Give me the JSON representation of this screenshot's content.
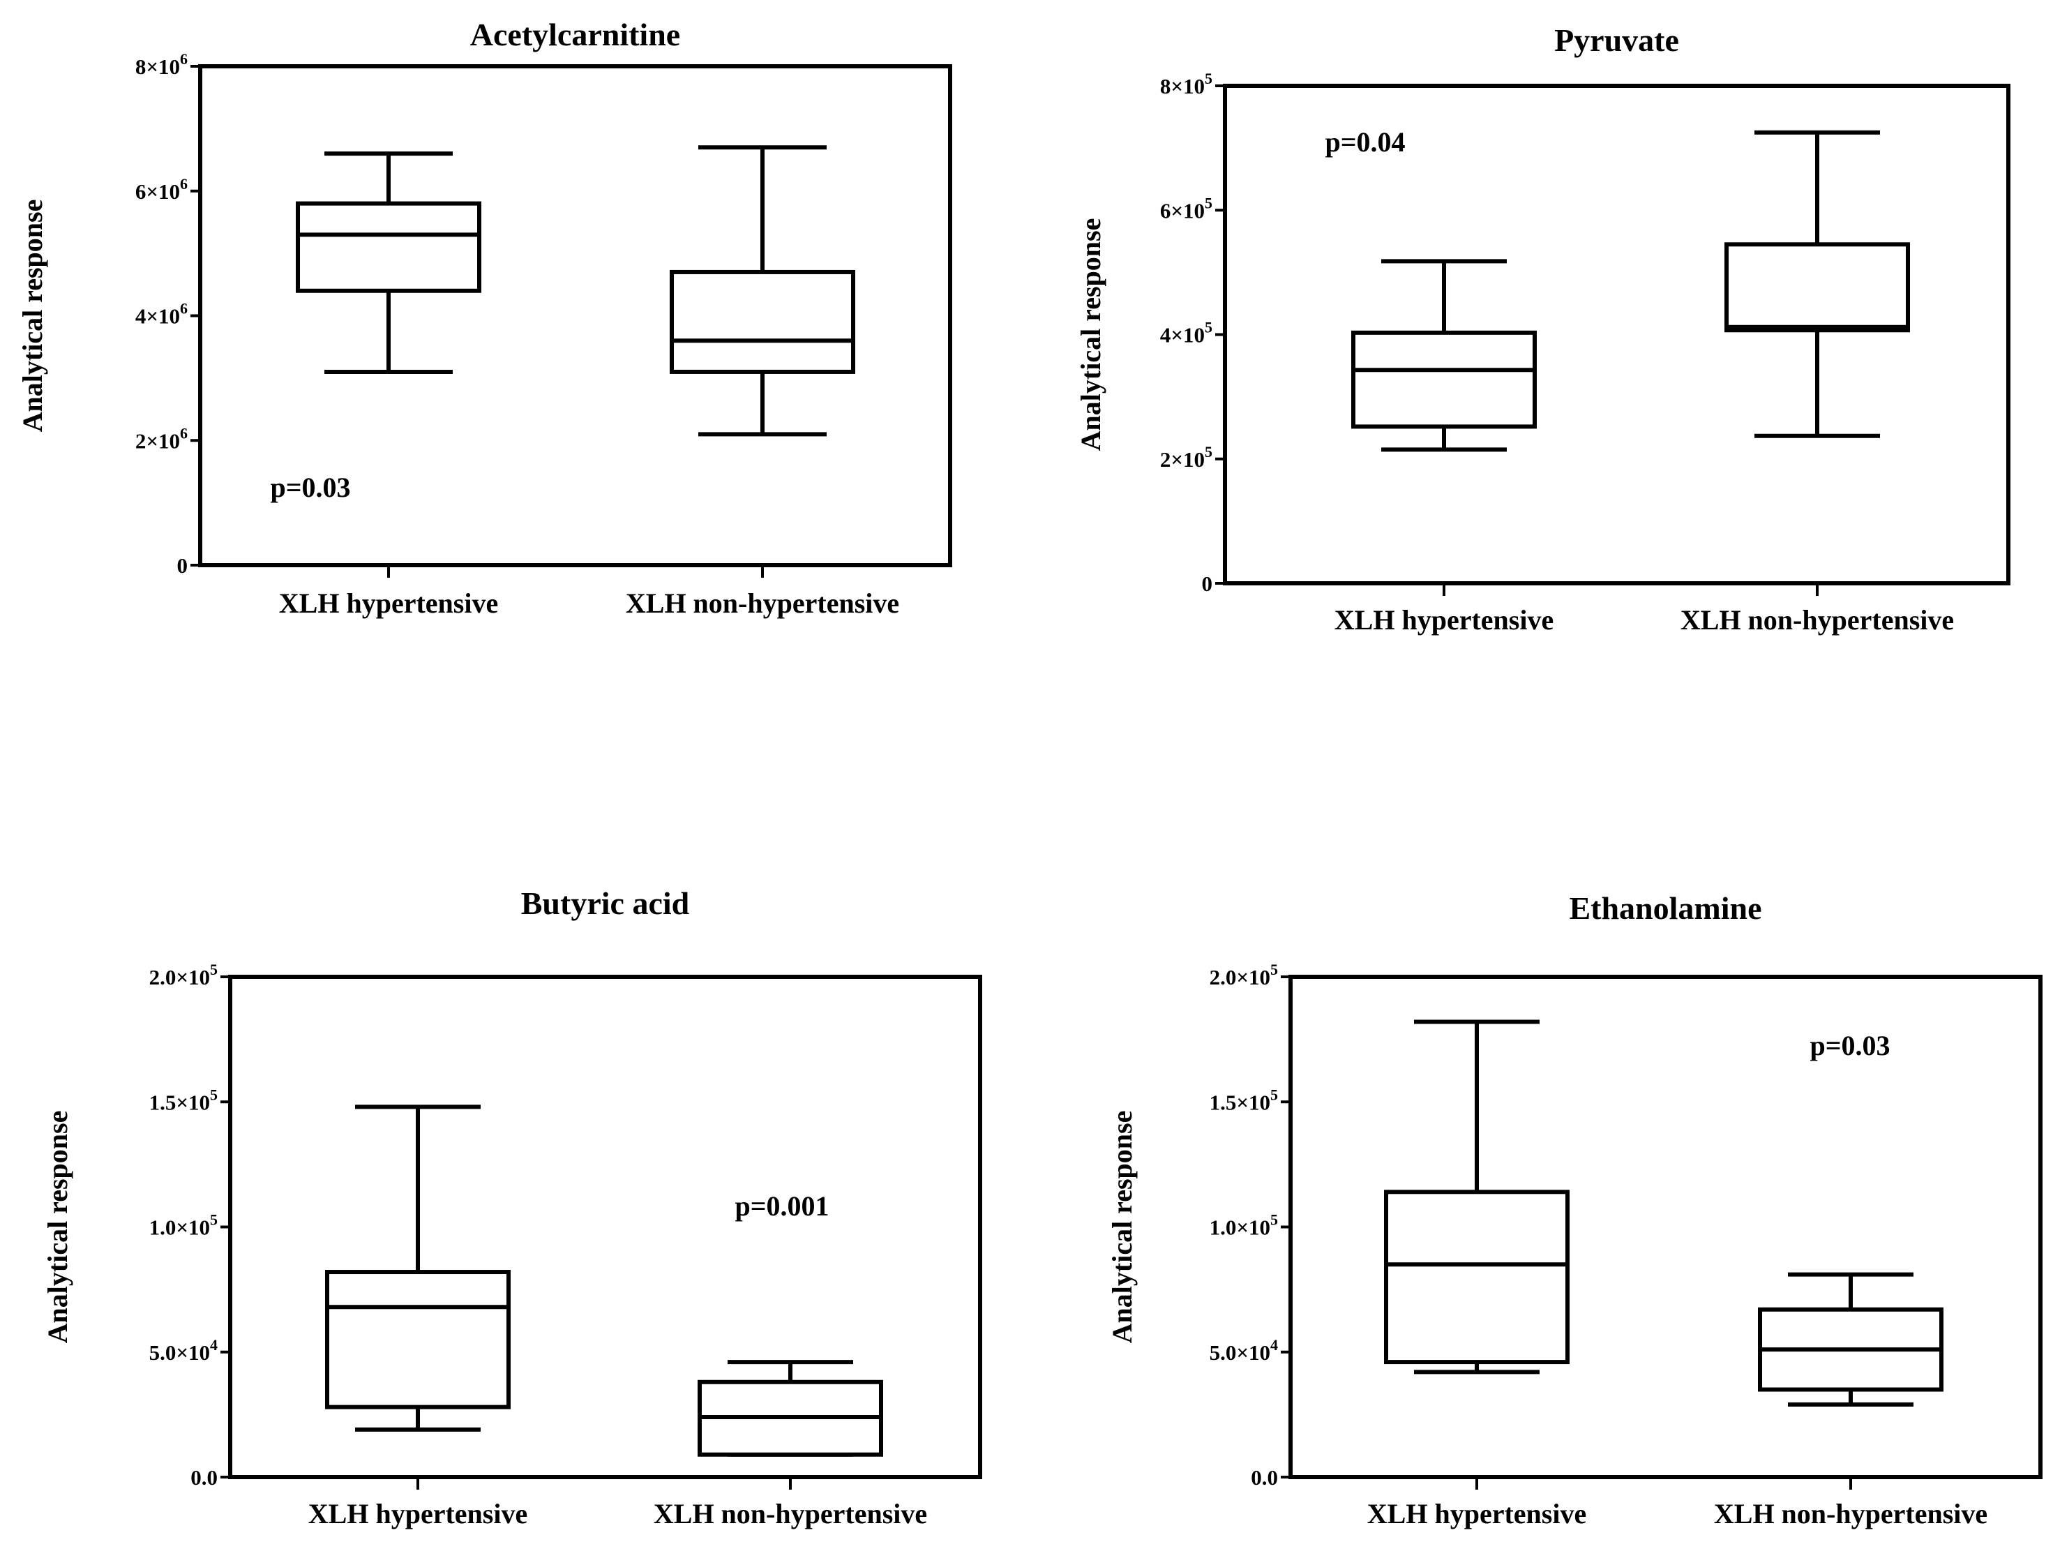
{
  "chart_data": [
    {
      "type": "box",
      "title": "Acetylcarnitine",
      "ylabel": "Analytical response",
      "ylim": [
        0,
        8000000
      ],
      "yticks": [
        {
          "value": 0,
          "mant": "0",
          "exp": ""
        },
        {
          "value": 2000000,
          "mant": "2×10",
          "exp": "6"
        },
        {
          "value": 4000000,
          "mant": "4×10",
          "exp": "6"
        },
        {
          "value": 6000000,
          "mant": "6×10",
          "exp": "6"
        },
        {
          "value": 8000000,
          "mant": "8×10",
          "exp": "6"
        }
      ],
      "categories": [
        "XLH hypertensive",
        "XLH non-hypertensive"
      ],
      "boxes": [
        {
          "min": 3100000,
          "q1": 4400000,
          "median": 5300000,
          "q3": 5800000,
          "max": 6600000
        },
        {
          "min": 2100000,
          "q1": 3100000,
          "median": 3600000,
          "q3": 4700000,
          "max": 6700000
        }
      ],
      "annotation": "p=0.03"
    },
    {
      "type": "box",
      "title": "Pyruvate",
      "ylabel": "Analytical response",
      "ylim": [
        0,
        800000
      ],
      "yticks": [
        {
          "value": 0,
          "mant": "0",
          "exp": ""
        },
        {
          "value": 200000,
          "mant": "2×10",
          "exp": "5"
        },
        {
          "value": 400000,
          "mant": "4×10",
          "exp": "5"
        },
        {
          "value": 600000,
          "mant": "6×10",
          "exp": "5"
        },
        {
          "value": 800000,
          "mant": "8×10",
          "exp": "5"
        }
      ],
      "categories": [
        "XLH hypertensive",
        "XLH non-hypertensive"
      ],
      "boxes": [
        {
          "min": 215000,
          "q1": 252000,
          "median": 343000,
          "q3": 403000,
          "max": 518000
        },
        {
          "min": 237000,
          "q1": 407000,
          "median": 412000,
          "q3": 545000,
          "max": 725000
        }
      ],
      "annotation": "p=0.04"
    },
    {
      "type": "box",
      "title": "Butyric acid",
      "ylabel": "Analytical response",
      "ylim": [
        0,
        200000
      ],
      "yticks": [
        {
          "value": 0,
          "mant": "0.0",
          "exp": ""
        },
        {
          "value": 50000,
          "mant": "5.0×10",
          "exp": "4"
        },
        {
          "value": 100000,
          "mant": "1.0×10",
          "exp": "5"
        },
        {
          "value": 150000,
          "mant": "1.5×10",
          "exp": "5"
        },
        {
          "value": 200000,
          "mant": "2.0×10",
          "exp": "5"
        }
      ],
      "categories": [
        "XLH hypertensive",
        "XLH non-hypertensive"
      ],
      "boxes": [
        {
          "min": 19000,
          "q1": 28000,
          "median": 68000,
          "q3": 82000,
          "max": 148000
        },
        {
          "min": 9000,
          "q1": 9000,
          "median": 24000,
          "q3": 38000,
          "max": 46000
        }
      ],
      "annotation": "p=0.001"
    },
    {
      "type": "box",
      "title": "Ethanolamine",
      "ylabel": "Analytical response",
      "ylim": [
        0,
        200000
      ],
      "yticks": [
        {
          "value": 0,
          "mant": "0.0",
          "exp": ""
        },
        {
          "value": 50000,
          "mant": "5.0×10",
          "exp": "4"
        },
        {
          "value": 100000,
          "mant": "1.0×10",
          "exp": "5"
        },
        {
          "value": 150000,
          "mant": "1.5×10",
          "exp": "5"
        },
        {
          "value": 200000,
          "mant": "2.0×10",
          "exp": "5"
        }
      ],
      "categories": [
        "XLH hypertensive",
        "XLH non-hypertensive"
      ],
      "boxes": [
        {
          "min": 42000,
          "q1": 46000,
          "median": 85000,
          "q3": 114000,
          "max": 182000
        },
        {
          "min": 29000,
          "q1": 35000,
          "median": 51000,
          "q3": 67000,
          "max": 81000
        }
      ],
      "annotation": "p=0.03"
    }
  ]
}
